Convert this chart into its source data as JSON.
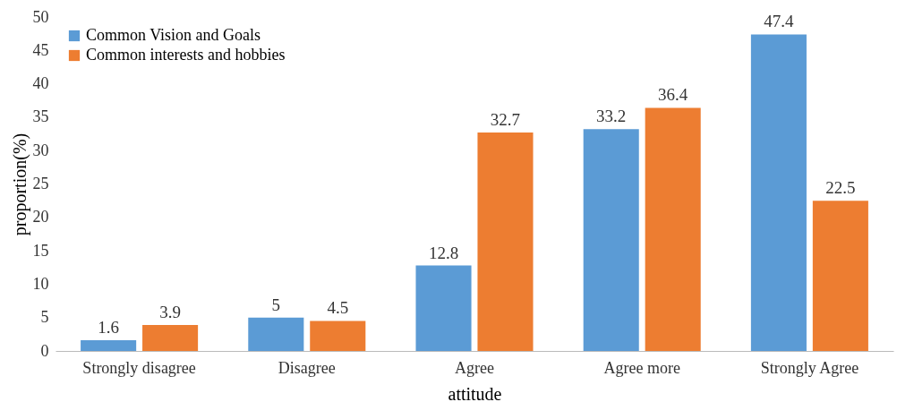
{
  "chart_data": {
    "type": "bar",
    "xlabel": "attitude",
    "ylabel": "proportion(%)",
    "categories": [
      "Strongly disagree",
      "Disagree",
      "Agree",
      "Agree more",
      "Strongly Agree"
    ],
    "series": [
      {
        "name": "Common Vision and Goals",
        "color": "#5b9bd5",
        "values": [
          1.6,
          5,
          12.8,
          33.2,
          47.4
        ]
      },
      {
        "name": "Common interests and hobbies",
        "color": "#ed7d31",
        "values": [
          3.9,
          4.5,
          32.7,
          36.4,
          22.5
        ]
      }
    ],
    "ylim": [
      0,
      50
    ],
    "yticks": [
      0,
      5,
      10,
      15,
      20,
      25,
      30,
      35,
      40,
      45,
      50
    ],
    "data_labels": true,
    "legend": "top left",
    "grid": false
  }
}
